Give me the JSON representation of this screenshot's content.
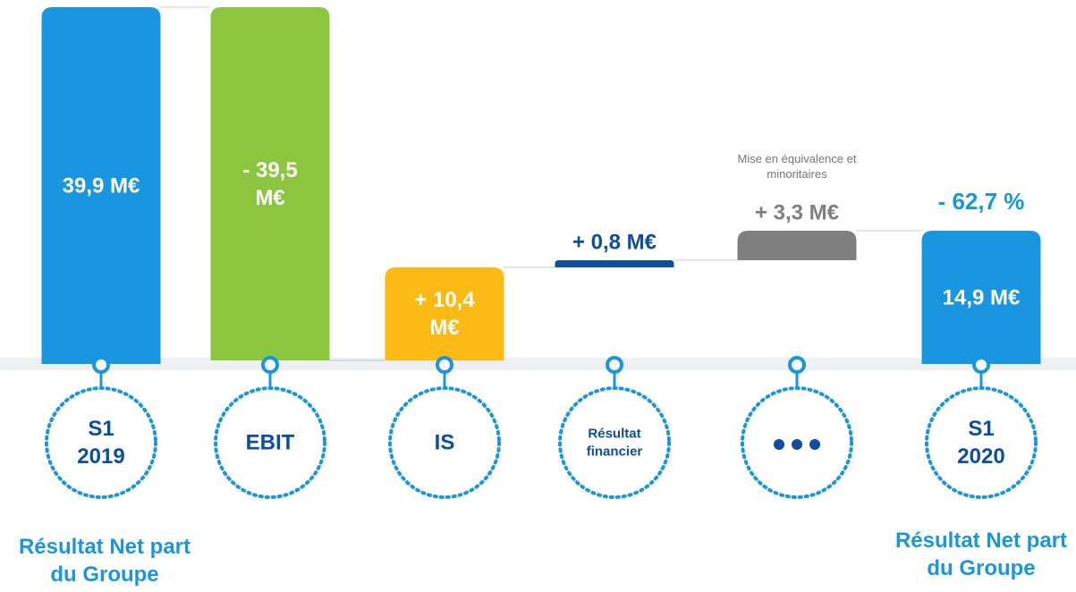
{
  "chart_data": {
    "type": "waterfall",
    "categories": [
      "S1 2019",
      "EBIT",
      "IS",
      "Résultat financier",
      null,
      "S1 2020"
    ],
    "values": [
      39.9,
      -39.5,
      10.4,
      0.8,
      3.3,
      14.9
    ],
    "value_labels": [
      "39,9 M€",
      "- 39,5 M€",
      "+ 10,4 M€",
      "+ 0,8 M€",
      "+ 3,3 M€",
      "14,9 M€"
    ],
    "colors": [
      "#1a96e0",
      "#8cc63f",
      "#fdb913",
      "#0b4ea2",
      "#7f7f7f",
      "#1a96e0"
    ],
    "note": "Mise en équivalence et minoritaires",
    "change_label": "- 62,7 %",
    "footer_labels": [
      "Résultat Net part du Groupe",
      "Résultat Net part du Groupe"
    ]
  }
}
